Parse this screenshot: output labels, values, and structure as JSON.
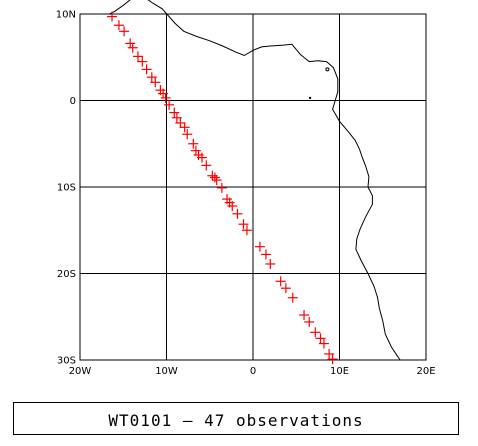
{
  "map": {
    "lon_range": [
      -20,
      20
    ],
    "lat_range": [
      -30,
      10
    ],
    "lon_ticks": [
      {
        "value": -20,
        "label": "20W"
      },
      {
        "value": -10,
        "label": "10W"
      },
      {
        "value": 0,
        "label": "0"
      },
      {
        "value": 10,
        "label": "10E"
      },
      {
        "value": 20,
        "label": "20E"
      }
    ],
    "lat_ticks": [
      {
        "value": 10,
        "label": "10N"
      },
      {
        "value": 0,
        "label": "0"
      },
      {
        "value": -10,
        "label": "10S"
      },
      {
        "value": -20,
        "label": "20S"
      },
      {
        "value": -30,
        "label": "30S"
      }
    ],
    "grid": true,
    "marker_color": "#ff0000",
    "marker_symbol": "plus",
    "coastline_color": "#000000",
    "observations": [
      [
        -16.3,
        9.7
      ],
      [
        -14.9,
        8.0
      ],
      [
        -14.2,
        6.6
      ],
      [
        -13.9,
        6.1
      ],
      [
        -13.3,
        5.1
      ],
      [
        -12.8,
        4.5
      ],
      [
        -12.3,
        3.6
      ],
      [
        -11.7,
        2.7
      ],
      [
        -11.3,
        2.1
      ],
      [
        -10.7,
        1.2
      ],
      [
        -10.1,
        0.3
      ],
      [
        -9.7,
        -0.5
      ],
      [
        -9.1,
        -1.4
      ],
      [
        -8.8,
        -2.0
      ],
      [
        -7.9,
        -3.1
      ],
      [
        -7.6,
        -3.9
      ],
      [
        -6.9,
        -5.0
      ],
      [
        -6.6,
        -5.8
      ],
      [
        -5.9,
        -6.6
      ],
      [
        -5.4,
        -7.5
      ],
      [
        -4.7,
        -8.7
      ],
      [
        -4.2,
        -9.2
      ],
      [
        -3.6,
        -10.1
      ],
      [
        -3.0,
        -11.4
      ],
      [
        -2.4,
        -12.2
      ],
      [
        -1.8,
        -13.1
      ],
      [
        -0.7,
        -15.0
      ],
      [
        0.8,
        -16.9
      ],
      [
        2.0,
        -18.9
      ],
      [
        3.2,
        -20.9
      ],
      [
        4.6,
        -22.8
      ],
      [
        5.9,
        -24.8
      ],
      [
        7.2,
        -26.8
      ],
      [
        8.2,
        -28.1
      ],
      [
        9.2,
        -29.9
      ],
      [
        -15.5,
        8.7
      ],
      [
        -10.4,
        0.8
      ],
      [
        -8.4,
        -2.6
      ],
      [
        -6.3,
        -6.3
      ],
      [
        -4.4,
        -8.9
      ],
      [
        -2.7,
        -11.8
      ],
      [
        -1.1,
        -14.3
      ],
      [
        1.5,
        -17.8
      ],
      [
        3.8,
        -21.7
      ],
      [
        6.5,
        -25.6
      ],
      [
        7.8,
        -27.5
      ],
      [
        8.8,
        -29.3
      ]
    ],
    "coastline": [
      [
        -16.6,
        10.0
      ],
      [
        -16.0,
        10.3
      ],
      [
        -15.0,
        11.0
      ],
      [
        -14.0,
        11.8
      ],
      [
        -13.2,
        12.5
      ],
      [
        -12.5,
        11.9
      ],
      [
        -11.5,
        11.2
      ],
      [
        -10.5,
        10.6
      ],
      [
        -9.0,
        8.9
      ],
      [
        -8.0,
        8.0
      ],
      [
        -6.5,
        7.4
      ],
      [
        -5.0,
        6.9
      ],
      [
        -3.5,
        6.3
      ],
      [
        -2.0,
        5.6
      ],
      [
        -1.0,
        5.2
      ],
      [
        0.0,
        5.8
      ],
      [
        1.0,
        6.2
      ],
      [
        2.0,
        6.3
      ],
      [
        3.5,
        6.4
      ],
      [
        4.5,
        6.5
      ],
      [
        5.5,
        5.3
      ],
      [
        6.5,
        4.5
      ],
      [
        7.5,
        4.6
      ],
      [
        8.5,
        4.5
      ],
      [
        9.3,
        3.8
      ],
      [
        9.8,
        2.5
      ],
      [
        9.8,
        1.0
      ],
      [
        9.5,
        0.0
      ],
      [
        9.2,
        -1.0
      ],
      [
        10.0,
        -2.4
      ],
      [
        11.0,
        -3.6
      ],
      [
        11.8,
        -4.6
      ],
      [
        12.3,
        -5.6
      ],
      [
        12.6,
        -6.5
      ],
      [
        13.0,
        -7.5
      ],
      [
        13.4,
        -8.8
      ],
      [
        13.3,
        -10.0
      ],
      [
        13.8,
        -11.0
      ],
      [
        13.8,
        -12.0
      ],
      [
        13.0,
        -13.5
      ],
      [
        12.4,
        -14.8
      ],
      [
        12.0,
        -16.0
      ],
      [
        11.9,
        -17.2
      ],
      [
        12.5,
        -18.5
      ],
      [
        13.3,
        -20.0
      ],
      [
        14.0,
        -21.5
      ],
      [
        14.4,
        -22.8
      ],
      [
        14.6,
        -24.0
      ],
      [
        15.0,
        -25.5
      ],
      [
        15.3,
        -27.0
      ],
      [
        16.0,
        -28.5
      ],
      [
        16.6,
        -29.4
      ],
      [
        17.0,
        -30.0
      ]
    ]
  },
  "caption": {
    "text": "WT0101 — 47 observations"
  }
}
